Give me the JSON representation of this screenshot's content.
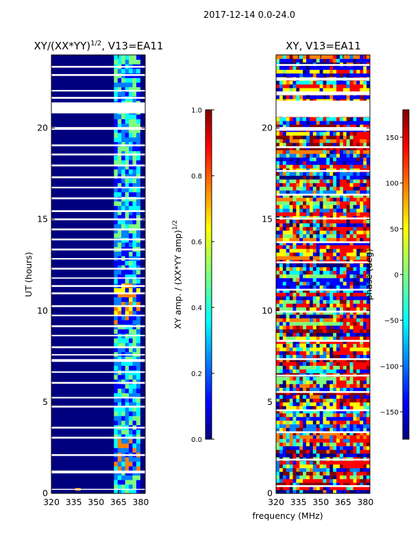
{
  "suptitle": "2017-12-14 0.0-24.0",
  "xlabel_common": "frequency (MHz)",
  "colors": {
    "dark_blue": "#00007f",
    "jet": [
      "#00007f",
      "#0000ff",
      "#007fff",
      "#00ffff",
      "#7fff7f",
      "#ffff00",
      "#ff7f00",
      "#ff0000",
      "#7f0000"
    ]
  },
  "chart_data": [
    {
      "type": "heatmap",
      "name": "amplitude-ratio",
      "title_main": "XY/(XX*YY)",
      "title_sup": "1/2",
      "title_tail": ", V13=EA11",
      "xlabel": "",
      "ylabel": "UT (hours)",
      "xlim": [
        320,
        383
      ],
      "ylim": [
        0,
        24
      ],
      "xticks": [
        320,
        335,
        350,
        365,
        380
      ],
      "yticks": [
        0,
        5,
        10,
        15,
        20
      ],
      "colorbar": {
        "label_main": "XY amp. / (XX*YY amp)",
        "label_sup": "1/2",
        "range": [
          0.0,
          1.0
        ],
        "ticks": [
          "0.0",
          "0.2",
          "0.4",
          "0.6",
          "0.8",
          "1.0"
        ]
      }
    },
    {
      "type": "heatmap",
      "name": "phase",
      "title": "XY, V13=EA11",
      "xlabel": "frequency (MHz)",
      "ylabel": "",
      "xlim": [
        320,
        383
      ],
      "ylim": [
        0,
        24
      ],
      "xticks": [
        320,
        335,
        350,
        365,
        380
      ],
      "yticks": [
        0,
        5,
        10,
        15,
        20
      ],
      "colorbar": {
        "label": "phase (deg)",
        "range": [
          -180,
          180
        ],
        "ticks": [
          "150",
          "100",
          "50",
          "0",
          "−50",
          "−100",
          "−150"
        ]
      }
    }
  ],
  "left_hours_data_gaps": [
    [
      0.2,
      0.25
    ],
    [
      1.1,
      1.25
    ],
    [
      2.05,
      2.15
    ],
    [
      3.0,
      3.1
    ],
    [
      3.55,
      3.65
    ],
    [
      4.7,
      4.8
    ],
    [
      5.2,
      5.28
    ],
    [
      6.0,
      6.1
    ],
    [
      6.6,
      6.68
    ],
    [
      7.2,
      7.35
    ],
    [
      7.55,
      7.62
    ],
    [
      7.95,
      8.05
    ],
    [
      8.6,
      8.68
    ],
    [
      9.1,
      9.2
    ],
    [
      9.7,
      9.78
    ],
    [
      10.2,
      10.3
    ],
    [
      10.9,
      11.0
    ],
    [
      11.3,
      11.4
    ],
    [
      11.75,
      11.82
    ],
    [
      12.25,
      12.35
    ],
    [
      12.8,
      12.88
    ],
    [
      13.3,
      13.4
    ],
    [
      13.85,
      13.95
    ],
    [
      14.4,
      14.5
    ],
    [
      14.95,
      15.05
    ],
    [
      15.4,
      15.5
    ],
    [
      16.1,
      16.2
    ],
    [
      16.7,
      16.78
    ],
    [
      17.25,
      17.35
    ],
    [
      17.9,
      18.0
    ],
    [
      18.5,
      18.6
    ],
    [
      19.0,
      19.1
    ],
    [
      19.9,
      20.05
    ],
    [
      20.8,
      21.4
    ],
    [
      21.6,
      21.7
    ],
    [
      22.0,
      22.08
    ],
    [
      22.85,
      22.95
    ],
    [
      23.3,
      23.4
    ]
  ],
  "right_hours_data_gaps": [
    [
      0.35,
      0.45
    ],
    [
      1.8,
      1.9
    ],
    [
      3.3,
      3.4
    ],
    [
      4.5,
      4.6
    ],
    [
      5.5,
      5.6
    ],
    [
      6.4,
      6.5
    ],
    [
      7.3,
      7.4
    ],
    [
      8.3,
      8.4
    ],
    [
      9.9,
      10.0
    ],
    [
      11.1,
      11.2
    ],
    [
      12.6,
      12.7
    ],
    [
      13.7,
      13.8
    ],
    [
      15.0,
      15.1
    ],
    [
      16.3,
      16.4
    ],
    [
      17.6,
      17.7
    ],
    [
      18.9,
      19.0
    ],
    [
      19.85,
      20.05
    ],
    [
      20.6,
      21.5
    ],
    [
      21.8,
      22.0
    ],
    [
      22.6,
      22.75
    ],
    [
      23.4,
      23.5
    ]
  ]
}
